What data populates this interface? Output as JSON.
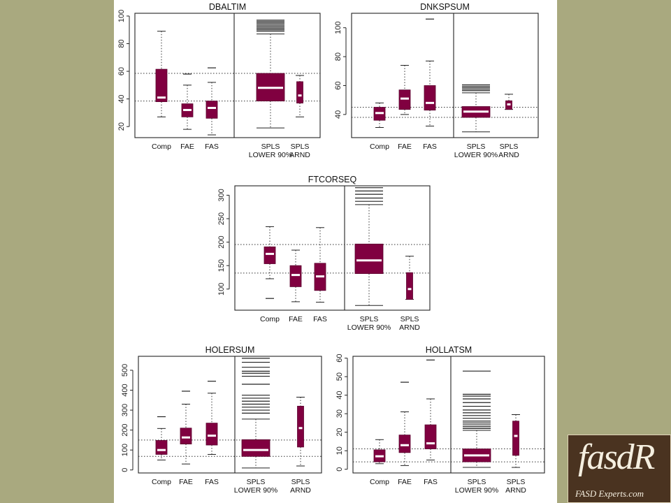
{
  "chart_data": [
    {
      "type": "box",
      "title": "DBALTIM",
      "yticks": [
        20,
        40,
        60,
        80,
        100
      ],
      "ylim": [
        12,
        102
      ],
      "reference_lines": [
        38.5,
        58.5
      ],
      "categories": [
        "Comp",
        "FAE",
        "FAS",
        "SPLS\nLOWER 90%",
        "SPLS\nARND"
      ],
      "boxes": [
        {
          "q1": 38,
          "median": 41,
          "q3": 61.5,
          "whisker_low": 27,
          "whisker_high": 89,
          "outliers": []
        },
        {
          "q1": 27,
          "median": 32,
          "q3": 36.5,
          "whisker_low": 18,
          "whisker_high": 50,
          "outliers": [
            58
          ]
        },
        {
          "q1": 26,
          "median": 33.5,
          "q3": 38.5,
          "whisker_low": 14,
          "whisker_high": 52,
          "outliers": [
            62.5
          ]
        },
        {
          "q1": 38.5,
          "median": 48,
          "q3": 58.5,
          "whisker_low": 19,
          "whisker_high": 87,
          "outliers": [
            89,
            90,
            91,
            92,
            93,
            94,
            95,
            96,
            97
          ]
        },
        {
          "q1": 37,
          "median": 42.5,
          "q3": 52.5,
          "whisker_low": 27,
          "whisker_high": 57,
          "outliers": []
        }
      ]
    },
    {
      "type": "box",
      "title": "DNKSPSUM",
      "yticks": [
        40,
        60,
        80,
        100
      ],
      "ylim": [
        24,
        110
      ],
      "reference_lines": [
        38,
        45
      ],
      "categories": [
        "Comp",
        "FAE",
        "FAS",
        "SPLS\nLOWER 90%",
        "SPLS\nARND"
      ],
      "boxes": [
        {
          "q1": 36,
          "median": 41,
          "q3": 45,
          "whisker_low": 31,
          "whisker_high": 48,
          "outliers": []
        },
        {
          "q1": 43.5,
          "median": 51,
          "q3": 57,
          "whisker_low": 40,
          "whisker_high": 74,
          "outliers": []
        },
        {
          "q1": 43,
          "median": 48,
          "q3": 60,
          "whisker_low": 32,
          "whisker_high": 77,
          "outliers": [
            106
          ]
        },
        {
          "q1": 38,
          "median": 42,
          "q3": 45.5,
          "whisker_low": 28,
          "whisker_high": 55,
          "outliers": [
            56.5,
            57.5,
            58.5,
            59.5,
            60.5
          ]
        },
        {
          "q1": 43.5,
          "median": 47,
          "q3": 49.5,
          "whisker_low": 43.5,
          "whisker_high": 54,
          "outliers": []
        }
      ]
    },
    {
      "type": "box",
      "title": "FTCORSEQ",
      "yticks": [
        100,
        150,
        200,
        250,
        300
      ],
      "ylim": [
        55,
        320
      ],
      "reference_lines": [
        134,
        195
      ],
      "categories": [
        "Comp",
        "FAE",
        "FAS",
        "SPLS\nLOWER 90%",
        "SPLS\nARND"
      ],
      "boxes": [
        {
          "q1": 154,
          "median": 175,
          "q3": 190,
          "whisker_low": 122,
          "whisker_high": 233,
          "outliers": [
            80
          ]
        },
        {
          "q1": 105,
          "median": 130,
          "q3": 150,
          "whisker_low": 73,
          "whisker_high": 183,
          "outliers": []
        },
        {
          "q1": 97,
          "median": 127,
          "q3": 155,
          "whisker_low": 72,
          "whisker_high": 231,
          "outliers": []
        },
        {
          "q1": 133,
          "median": 161,
          "q3": 196,
          "whisker_low": 65,
          "whisker_high": 280,
          "outliers": [
            287,
            294,
            302,
            309,
            316
          ]
        },
        {
          "q1": 78,
          "median": 100,
          "q3": 135,
          "whisker_low": 78,
          "whisker_high": 170,
          "outliers": []
        }
      ]
    },
    {
      "type": "box",
      "title": "HOLERSUM",
      "yticks": [
        0,
        100,
        200,
        300,
        400,
        500
      ],
      "ylim": [
        -15,
        570
      ],
      "reference_lines": [
        68,
        150
      ],
      "categories": [
        "Comp",
        "FAE",
        "FAS",
        "SPLS\nLOWER 90%",
        "SPLS\nARND"
      ],
      "boxes": [
        {
          "q1": 78,
          "median": 100,
          "q3": 148,
          "whisker_low": 50,
          "whisker_high": 208,
          "outliers": [
            267
          ]
        },
        {
          "q1": 130,
          "median": 163,
          "q3": 210,
          "whisker_low": 30,
          "whisker_high": 330,
          "outliers": [
            395
          ]
        },
        {
          "q1": 125,
          "median": 172,
          "q3": 235,
          "whisker_low": 78,
          "whisker_high": 385,
          "outliers": [
            445
          ]
        },
        {
          "q1": 68,
          "median": 100,
          "q3": 152,
          "whisker_low": 10,
          "whisker_high": 255,
          "outliers": [
            285,
            300,
            315,
            330,
            345,
            360,
            375,
            430,
            470,
            485,
            495,
            515,
            540,
            560
          ]
        },
        {
          "q1": 115,
          "median": 210,
          "q3": 320,
          "whisker_low": 20,
          "whisker_high": 365,
          "outliers": []
        }
      ]
    },
    {
      "type": "box",
      "title": "HOLLATSM",
      "yticks": [
        0,
        10,
        20,
        30,
        40,
        50,
        60
      ],
      "ylim": [
        -2,
        61
      ],
      "reference_lines": [
        4,
        11
      ],
      "categories": [
        "Comp",
        "FAE",
        "FAS",
        "SPLS\nLOWER 90%",
        "SPLS\nARND"
      ],
      "boxes": [
        {
          "q1": 4,
          "median": 7,
          "q3": 10.5,
          "whisker_low": 3,
          "whisker_high": 16,
          "outliers": []
        },
        {
          "q1": 9,
          "median": 13,
          "q3": 18.5,
          "whisker_low": 2,
          "whisker_high": 31,
          "outliers": [
            47
          ]
        },
        {
          "q1": 11,
          "median": 14,
          "q3": 24,
          "whisker_low": 5,
          "whisker_high": 38,
          "outliers": [
            59
          ]
        },
        {
          "q1": 4,
          "median": 7.5,
          "q3": 11,
          "whisker_low": 1,
          "whisker_high": 21,
          "outliers": [
            22,
            23,
            24,
            25,
            26,
            27.5,
            29,
            30.5,
            32,
            34,
            36,
            38,
            39.5,
            40.5,
            53
          ]
        },
        {
          "q1": 7.5,
          "median": 18,
          "q3": 26,
          "whisker_low": 1,
          "whisker_high": 29.5,
          "outliers": []
        }
      ]
    }
  ],
  "logo": {
    "mark": "fasdR",
    "sub": "FASD Experts.com",
    "colors": {
      "background": "#4a3320",
      "text": "#f5efe0"
    }
  },
  "colors": {
    "box": "#800040",
    "median": "#ffffff",
    "side_background": "#a9a97f"
  }
}
